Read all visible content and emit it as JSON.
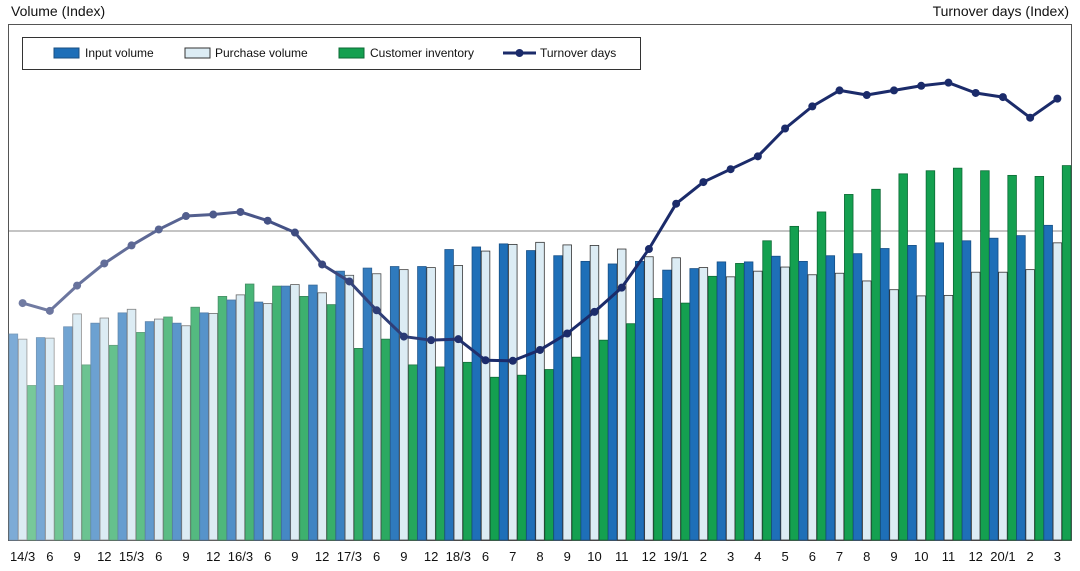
{
  "chart_data": {
    "type": "bar",
    "ylabel_left": "Volume (Index)",
    "ylabel_right": "Turnover days (Index)",
    "ylim_left": [
      0,
      100
    ],
    "ylim_right": [
      0,
      100
    ],
    "reference_line": 60,
    "legend_position": "top-left",
    "categories": [
      "14/3",
      "6",
      "9",
      "12",
      "15/3",
      "6",
      "9",
      "12",
      "16/3",
      "6",
      "9",
      "12",
      "17/3",
      "6",
      "9",
      "12",
      "18/3",
      "6",
      "7",
      "8",
      "9",
      "10",
      "11",
      "12",
      "19/1",
      "2",
      "3",
      "4",
      "5",
      "6",
      "7",
      "8",
      "9",
      "10",
      "11",
      "12",
      "20/1",
      "2",
      "3"
    ],
    "series": [
      {
        "name": "Input volume",
        "kind": "bar",
        "axis": "left",
        "color": "#1e6fb8",
        "values": [
          40.0,
          39.3,
          41.4,
          42.1,
          44.1,
          42.4,
          42.1,
          44.1,
          46.6,
          46.2,
          49.3,
          49.5,
          52.2,
          52.8,
          53.1,
          53.1,
          56.4,
          56.9,
          57.5,
          56.2,
          55.2,
          54.1,
          53.6,
          54.1,
          52.4,
          52.7,
          54.0,
          54.0,
          55.1,
          54.1,
          55.2,
          55.6,
          56.6,
          57.2,
          57.7,
          58.1,
          58.6,
          59.1,
          61.1
        ]
      },
      {
        "name": "Purchase volume",
        "kind": "bar",
        "axis": "left",
        "color": "#dcecf4",
        "values": [
          39.0,
          39.2,
          43.9,
          43.1,
          44.8,
          42.9,
          41.6,
          44.0,
          47.6,
          45.9,
          49.6,
          48.0,
          51.4,
          51.7,
          52.5,
          52.9,
          53.3,
          56.1,
          57.4,
          57.8,
          57.3,
          57.2,
          56.5,
          55.0,
          54.8,
          52.9,
          51.1,
          52.2,
          53.0,
          51.5,
          51.8,
          50.3,
          48.6,
          47.4,
          47.5,
          52.0,
          52.0,
          52.5,
          57.7
        ]
      },
      {
        "name": "Customer inventory",
        "kind": "bar",
        "axis": "left",
        "color": "#14a050",
        "values": [
          30.0,
          30.0,
          34.0,
          37.8,
          40.3,
          43.3,
          45.2,
          47.3,
          49.7,
          49.3,
          47.3,
          45.7,
          37.2,
          39.0,
          34.0,
          33.6,
          34.5,
          31.6,
          32.0,
          33.1,
          35.5,
          38.8,
          42.0,
          46.9,
          46.0,
          51.2,
          53.7,
          58.1,
          60.9,
          63.7,
          67.1,
          68.1,
          71.1,
          71.7,
          72.2,
          71.7,
          70.8,
          70.6,
          72.7
        ]
      },
      {
        "name": "Turnover days",
        "kind": "line",
        "axis": "right",
        "color": "#1b2b6a",
        "values": [
          46.0,
          44.5,
          49.4,
          53.7,
          57.2,
          60.3,
          62.9,
          63.2,
          63.7,
          62.0,
          59.7,
          53.5,
          50.2,
          44.6,
          39.5,
          38.8,
          39.0,
          34.9,
          34.8,
          36.9,
          40.1,
          44.3,
          49.0,
          56.5,
          65.3,
          69.5,
          72.0,
          74.5,
          79.9,
          84.2,
          87.3,
          86.4,
          87.3,
          88.2,
          88.8,
          86.8,
          86.0,
          82.0,
          85.7
        ]
      }
    ]
  }
}
